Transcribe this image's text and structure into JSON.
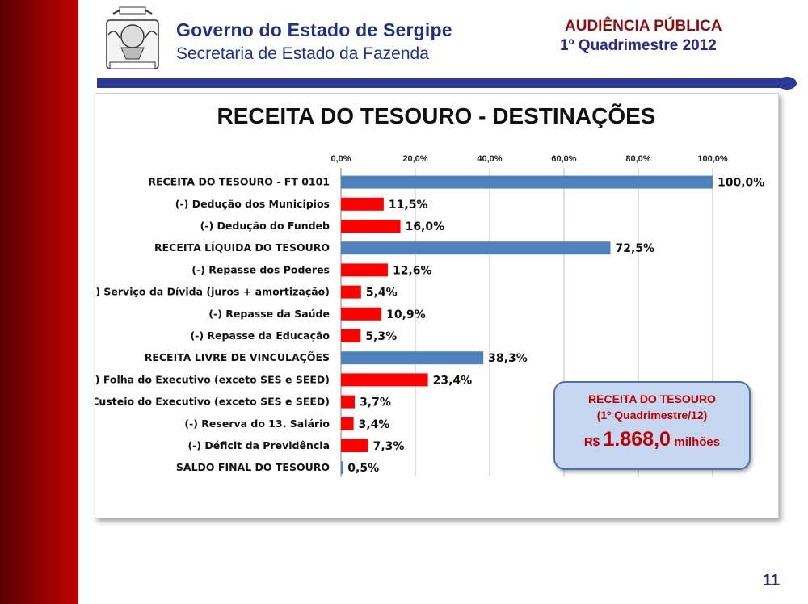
{
  "header": {
    "org_title": "Governo do Estado de Sergipe",
    "org_subtitle": "Secretaria de Estado da Fazenda",
    "event_title": "AUDIÊNCIA PÚBLICA",
    "event_subtitle": "1º Quadrimestre 2012"
  },
  "colors": {
    "sidebar": "#8a0000",
    "total_bar": "#4f81bd",
    "deduction_bar": "#ff0000",
    "header_blue": "#1f2f8c",
    "callout_bg": "#c5d6f0",
    "callout_text": "#c00000"
  },
  "chart_data": {
    "type": "bar",
    "orientation": "horizontal",
    "title": "RECEITA DO TESOURO - DESTINAÇÕES",
    "xlim": [
      0,
      100
    ],
    "x_ticks": [
      "0,0%",
      "20,0%",
      "40,0%",
      "60,0%",
      "80,0%",
      "100,0%"
    ],
    "grid": true,
    "categories": [
      "RECEITA DO TESOURO - FT 0101",
      "(-) Dedução dos Municipios",
      "(-) Dedução do Fundeb",
      "RECEITA LÍQUIDA DO TESOURO",
      "(-) Repasse dos Poderes",
      "(-) Serviço da Dívida (juros + amortização)",
      "(-) Repasse da Saúde",
      "(-) Repasse da Educação",
      "RECEITA LIVRE DE VINCULAÇÕES",
      "(-) Folha do Executivo (exceto SES e SEED)",
      "(-) Custeio do Executivo (exceto SES e SEED)",
      "(-) Reserva do 13. Salário",
      "(-) Déficit da Previdência",
      "SALDO FINAL DO TESOURO"
    ],
    "values": [
      100.0,
      11.5,
      16.0,
      72.5,
      12.6,
      5.4,
      10.9,
      5.3,
      38.3,
      23.4,
      3.7,
      3.4,
      7.3,
      0.5
    ],
    "value_labels": [
      "100,0%",
      "11,5%",
      "16,0%",
      "72,5%",
      "12,6%",
      "5,4%",
      "10,9%",
      "5,3%",
      "38,3%",
      "23,4%",
      "3,7%",
      "3,4%",
      "7,3%",
      "0,5%"
    ],
    "kinds": [
      "total",
      "deduction",
      "deduction",
      "total",
      "deduction",
      "deduction",
      "deduction",
      "deduction",
      "total",
      "deduction",
      "deduction",
      "deduction",
      "deduction",
      "total"
    ]
  },
  "callout": {
    "title": "RECEITA DO TESOURO",
    "period": "(1º Quadrimestre/12)",
    "currency": "R$",
    "value": "1.868,0",
    "unit": "milhões"
  },
  "page_number": "11"
}
